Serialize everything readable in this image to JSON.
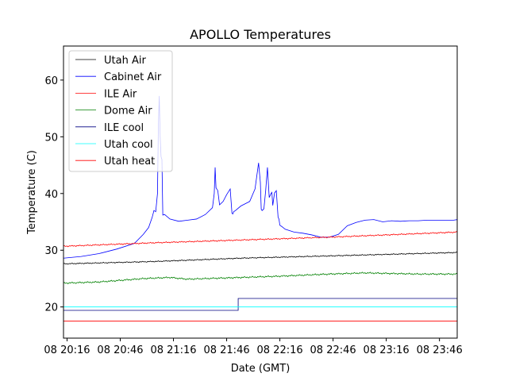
{
  "chart_data": {
    "type": "line",
    "title": "APOLLO Temperatures",
    "xlabel": "Date (GMT)",
    "ylabel": "Temperature (C)",
    "xlim": [
      0,
      222
    ],
    "ylim": [
      14.5,
      66
    ],
    "x_ticks": [
      {
        "x": 2,
        "label": "08 20:16"
      },
      {
        "x": 32,
        "label": "08 20:46"
      },
      {
        "x": 62,
        "label": "08 21:16"
      },
      {
        "x": 92,
        "label": "08 21:46"
      },
      {
        "x": 122,
        "label": "08 22:16"
      },
      {
        "x": 152,
        "label": "08 22:46"
      },
      {
        "x": 182,
        "label": "08 23:16"
      },
      {
        "x": 212,
        "label": "08 23:46"
      }
    ],
    "y_ticks": [
      {
        "y": 20,
        "label": "20"
      },
      {
        "y": 30,
        "label": "30"
      },
      {
        "y": 40,
        "label": "40"
      },
      {
        "y": 50,
        "label": "50"
      },
      {
        "y": 60,
        "label": "60"
      }
    ],
    "legend_position": "top-left",
    "series": [
      {
        "name": "Utah Air",
        "color": "#000000",
        "jitter": 0.1,
        "x": [
          0,
          50,
          100,
          150,
          222
        ],
        "y": [
          27.6,
          28,
          28.6,
          29,
          29.6
        ]
      },
      {
        "name": "Cabinet Air",
        "color": "#0000ff",
        "jitter": 0,
        "x": [
          0,
          10,
          20,
          30,
          40,
          45,
          48,
          50,
          51,
          52,
          53,
          53.5,
          54,
          54.5,
          55,
          55.5,
          56,
          57,
          60,
          65,
          70,
          75,
          80,
          84,
          85,
          85.5,
          86,
          87,
          88,
          90,
          92,
          94,
          95,
          95.5,
          96,
          97,
          100,
          105,
          108,
          110,
          111,
          111.5,
          112,
          113,
          114,
          115,
          116,
          117,
          117.5,
          118,
          119,
          120,
          121,
          121.5,
          122,
          123,
          125,
          130,
          135,
          140,
          145,
          150,
          155,
          160,
          165,
          170,
          175,
          180,
          185,
          190,
          195,
          200,
          205,
          210,
          215,
          220,
          222
        ],
        "y": [
          28.6,
          28.9,
          29.4,
          30.2,
          31.2,
          32.8,
          34,
          35.8,
          37,
          36.8,
          40,
          52,
          57.2,
          50,
          46.5,
          46,
          36.2,
          36.3,
          35.5,
          35.1,
          35.3,
          35.5,
          36.3,
          37.5,
          40,
          44.6,
          41,
          40.5,
          38,
          38.6,
          39.8,
          40.8,
          36.5,
          36.4,
          36.8,
          37,
          37.8,
          38.6,
          40.8,
          45.4,
          42,
          37.2,
          37,
          37.3,
          40.5,
          44.6,
          39.3,
          40,
          40.2,
          37.9,
          40.1,
          40.5,
          35.8,
          35.5,
          34.4,
          34.2,
          33.7,
          33.2,
          33,
          32.7,
          32.3,
          32.3,
          32.8,
          34.3,
          34.9,
          35.3,
          35.4,
          35,
          35.2,
          35.1,
          35.2,
          35.2,
          35.3,
          35.3,
          35.3,
          35.3,
          35.4
        ]
      },
      {
        "name": "ILE Air",
        "color": "#ff0000",
        "jitter": 0.12,
        "x": [
          0,
          50,
          100,
          150,
          222
        ],
        "y": [
          30.7,
          31.3,
          31.8,
          32.3,
          33.2
        ]
      },
      {
        "name": "Dome Air",
        "color": "#008000",
        "jitter": 0.15,
        "x": [
          0,
          20,
          45,
          60,
          70,
          90,
          120,
          150,
          170,
          200,
          222
        ],
        "y": [
          24.2,
          24.4,
          25,
          25.2,
          24.9,
          25.1,
          25.4,
          25.8,
          26,
          25.8,
          25.8
        ]
      },
      {
        "name": "ILE cool",
        "color": "#000080",
        "jitter": 0,
        "x": [
          0,
          98.5,
          98.5,
          222
        ],
        "y": [
          19.4,
          19.4,
          21.5,
          21.5
        ]
      },
      {
        "name": "Utah cool",
        "color": "#00ffff",
        "jitter": 0,
        "x": [
          0,
          222
        ],
        "y": [
          20,
          20
        ]
      },
      {
        "name": "Utah heat",
        "color": "#ff0000",
        "jitter": 0,
        "x": [
          0,
          222
        ],
        "y": [
          17.5,
          17.5
        ]
      }
    ]
  }
}
